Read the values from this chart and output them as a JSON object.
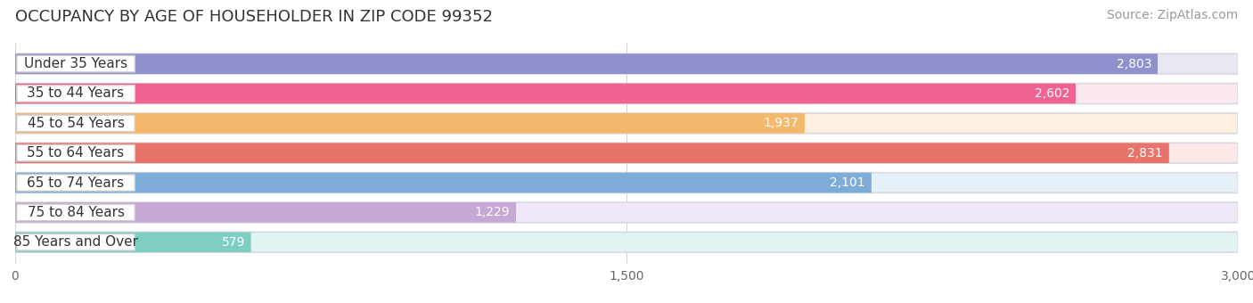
{
  "title": "OCCUPANCY BY AGE OF HOUSEHOLDER IN ZIP CODE 99352",
  "source": "Source: ZipAtlas.com",
  "categories": [
    "Under 35 Years",
    "35 to 44 Years",
    "45 to 54 Years",
    "55 to 64 Years",
    "65 to 74 Years",
    "75 to 84 Years",
    "85 Years and Over"
  ],
  "values": [
    2803,
    2602,
    1937,
    2831,
    2101,
    1229,
    579
  ],
  "bar_colors": [
    "#9090cc",
    "#f06292",
    "#f5b96e",
    "#e8736a",
    "#7eacd8",
    "#c5a8d4",
    "#7ecec4"
  ],
  "bar_bg_colors": [
    "#e8e8f2",
    "#fce8f0",
    "#fdf0e0",
    "#fce8e6",
    "#e6f0f8",
    "#f0e8f8",
    "#e0f5f3"
  ],
  "track_colors": [
    "#dddde8",
    "#f5d5e5",
    "#f5e8d0",
    "#f5ddd8",
    "#d8e8f5",
    "#e5d8f0",
    "#d0eeec"
  ],
  "xlim": [
    0,
    3000
  ],
  "xticks": [
    0,
    1500,
    3000
  ],
  "xticklabels": [
    "0",
    "1,500",
    "3,000"
  ],
  "title_fontsize": 13,
  "source_fontsize": 10,
  "label_fontsize": 11,
  "value_fontsize": 10,
  "background_color": "#ffffff"
}
